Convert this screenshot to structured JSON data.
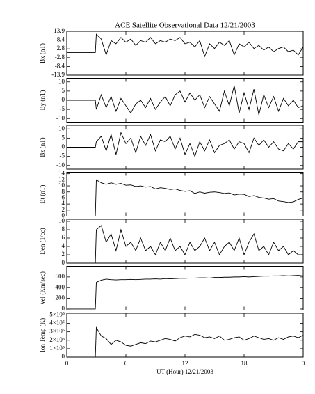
{
  "chart_data": [
    {
      "type": "line",
      "title": "ACE Satellite Observational Data   12/21/2003",
      "ylabel": "Bx (nT)",
      "x": [
        0,
        1,
        2,
        2.9,
        3,
        3.5,
        4,
        4.5,
        5,
        5.5,
        6,
        6.5,
        7,
        7.5,
        8,
        8.5,
        9,
        9.5,
        10,
        10.5,
        11,
        11.5,
        12,
        12.5,
        13,
        13.5,
        14,
        14.5,
        15,
        15.5,
        16,
        16.5,
        17,
        17.5,
        18,
        18.5,
        19,
        19.5,
        20,
        20.5,
        21,
        21.5,
        22,
        22.5,
        23,
        23.5,
        24
      ],
      "values": [
        0.5,
        0.5,
        0.5,
        0.5,
        12,
        9,
        -1,
        8,
        6,
        10,
        7,
        9,
        5,
        8,
        7,
        10,
        6,
        8,
        7,
        9,
        8,
        10,
        6,
        7,
        4,
        8,
        -2,
        6,
        3,
        7,
        5,
        8,
        -1,
        6,
        4,
        7,
        3,
        5,
        2,
        4,
        1,
        3,
        4,
        1,
        2,
        -1,
        4
      ],
      "color": "#000000",
      "xlim": [
        0,
        24
      ],
      "xticks": [
        0,
        6,
        12,
        18,
        {
          "value": 24,
          "label": "0"
        }
      ],
      "ylim": [
        -13.9,
        13.9
      ],
      "yticks": [
        13.9,
        8.4,
        2.8,
        -2.8,
        -8.4,
        -13.9
      ]
    },
    {
      "type": "line",
      "ylabel": "By (nT)",
      "x": [
        0,
        1,
        2,
        2.9,
        3,
        3.5,
        4,
        4.5,
        5,
        5.5,
        6,
        6.5,
        7,
        7.5,
        8,
        8.5,
        9,
        9.5,
        10,
        10.5,
        11,
        11.5,
        12,
        12.5,
        13,
        13.5,
        14,
        14.5,
        15,
        15.5,
        16,
        16.5,
        17,
        17.5,
        18,
        18.5,
        19,
        19.5,
        20,
        20.5,
        21,
        21.5,
        22,
        22.5,
        23,
        23.5,
        24
      ],
      "values": [
        0,
        0,
        0,
        0,
        -5,
        3,
        -4,
        2,
        -6,
        1,
        -3,
        -7,
        -2,
        0,
        -4,
        1,
        -5,
        -1,
        2,
        -3,
        3,
        5,
        -1,
        4,
        0,
        3,
        -4,
        2,
        -2,
        -6,
        5,
        -3,
        8,
        -7,
        4,
        -5,
        6,
        -8,
        3,
        -4,
        2,
        -6,
        1,
        -3,
        0,
        -4,
        -3
      ],
      "color": "#000000",
      "xlim": [
        0,
        24
      ],
      "xticks": [
        0,
        6,
        12,
        18,
        {
          "value": 24,
          "label": "0"
        }
      ],
      "ylim": [
        -12,
        12
      ],
      "yticks": [
        10,
        5,
        0,
        -5,
        -10
      ]
    },
    {
      "type": "line",
      "ylabel": "Bz (nT)",
      "x": [
        0,
        1,
        2,
        2.9,
        3,
        3.5,
        4,
        4.5,
        5,
        5.5,
        6,
        6.5,
        7,
        7.5,
        8,
        8.5,
        9,
        9.5,
        10,
        10.5,
        11,
        11.5,
        12,
        12.5,
        13,
        13.5,
        14,
        14.5,
        15,
        15.5,
        16,
        16.5,
        17,
        17.5,
        18,
        18.5,
        19,
        19.5,
        20,
        20.5,
        21,
        21.5,
        22,
        22.5,
        23,
        23.5,
        24
      ],
      "values": [
        0,
        0,
        0,
        0,
        3,
        6,
        -2,
        7,
        -4,
        8,
        2,
        5,
        -3,
        6,
        1,
        7,
        -2,
        4,
        3,
        6,
        -1,
        5,
        -4,
        2,
        -5,
        3,
        -2,
        4,
        -3,
        1,
        2,
        4,
        -1,
        3,
        2,
        -3,
        5,
        1,
        4,
        0,
        3,
        -1,
        -2,
        2,
        -1,
        3,
        3
      ],
      "color": "#000000",
      "xlim": [
        0,
        24
      ],
      "xticks": [
        0,
        6,
        12,
        18,
        {
          "value": 24,
          "label": "0"
        }
      ],
      "ylim": [
        -12,
        12
      ],
      "yticks": [
        10,
        5,
        0,
        -5,
        -10
      ]
    },
    {
      "type": "line",
      "ylabel": "Bt (nT)",
      "x": [
        0,
        1,
        2,
        2.9,
        3,
        3.5,
        4,
        4.5,
        5,
        5.5,
        6,
        6.5,
        7,
        7.5,
        8,
        8.5,
        9,
        9.5,
        10,
        10.5,
        11,
        11.5,
        12,
        12.5,
        13,
        13.5,
        14,
        14.5,
        15,
        15.5,
        16,
        16.5,
        17,
        17.5,
        18,
        18.5,
        19,
        19.5,
        20,
        20.5,
        21,
        21.5,
        22,
        22.5,
        23,
        23.5,
        24
      ],
      "values": [
        0,
        0,
        0,
        0,
        12,
        11,
        10.5,
        11,
        10.5,
        10.8,
        10.2,
        10.3,
        9.8,
        10,
        9.6,
        9.8,
        9,
        9.4,
        9.2,
        8.8,
        9,
        8.5,
        8.2,
        8.4,
        7.5,
        8,
        7.6,
        7.9,
        8,
        7.8,
        7.5,
        7.7,
        7,
        7.3,
        7.2,
        6.5,
        6.8,
        6.2,
        6,
        5.6,
        5.8,
        5,
        4.8,
        4.5,
        4.7,
        5.5,
        6
      ],
      "color": "#000000",
      "xlim": [
        0,
        24
      ],
      "xticks": [
        0,
        6,
        12,
        18,
        {
          "value": 24,
          "label": "0"
        }
      ],
      "ylim": [
        0,
        14.5
      ],
      "yticks": [
        0,
        2,
        4,
        6,
        8,
        10,
        12,
        14
      ]
    },
    {
      "type": "line",
      "ylabel": "Den (1/cc)",
      "x": [
        0,
        1,
        2,
        2.9,
        3,
        3.5,
        4,
        4.5,
        5,
        5.5,
        6,
        6.5,
        7,
        7.5,
        8,
        8.5,
        9,
        9.5,
        10,
        10.5,
        11,
        11.5,
        12,
        12.5,
        13,
        13.5,
        14,
        14.5,
        15,
        15.5,
        16,
        16.5,
        17,
        17.5,
        18,
        18.5,
        19,
        19.5,
        20,
        20.5,
        21,
        21.5,
        22,
        22.5,
        23,
        23.5,
        24
      ],
      "values": [
        0,
        0,
        0,
        0,
        8,
        9,
        5,
        7,
        3,
        8,
        4,
        5,
        3,
        6,
        3,
        4,
        2,
        5,
        3,
        6,
        3,
        4,
        2,
        5,
        3,
        4,
        6,
        3,
        5,
        2,
        4,
        5,
        3,
        6,
        2,
        5,
        7,
        3,
        4,
        2,
        5,
        3,
        4,
        2,
        3,
        2,
        2
      ],
      "color": "#000000",
      "xlim": [
        0,
        24
      ],
      "xticks": [
        0,
        6,
        12,
        18,
        {
          "value": 24,
          "label": "0"
        }
      ],
      "ylim": [
        0,
        10.5
      ],
      "yticks": [
        0,
        2,
        4,
        6,
        8,
        10
      ]
    },
    {
      "type": "line",
      "ylabel": "Vel (Km/sec)",
      "x": [
        0,
        1,
        2,
        2.9,
        3,
        3.5,
        4,
        4.5,
        5,
        5.5,
        6,
        6.5,
        7,
        7.5,
        8,
        8.5,
        9,
        9.5,
        10,
        10.5,
        11,
        11.5,
        12,
        12.5,
        13,
        13.5,
        14,
        14.5,
        15,
        15.5,
        16,
        16.5,
        17,
        17.5,
        18,
        18.5,
        19,
        19.5,
        20,
        20.5,
        21,
        21.5,
        22,
        22.5,
        23,
        23.5,
        24
      ],
      "values": [
        0,
        0,
        0,
        0,
        500,
        540,
        560,
        550,
        545,
        550,
        550,
        555,
        550,
        555,
        560,
        560,
        565,
        560,
        570,
        565,
        570,
        575,
        575,
        580,
        580,
        585,
        585,
        580,
        590,
        590,
        595,
        595,
        600,
        600,
        605,
        600,
        605,
        610,
        615,
        615,
        620,
        620,
        625,
        620,
        625,
        630,
        620
      ],
      "color": "#000000",
      "xlim": [
        0,
        24
      ],
      "xticks": [
        0,
        6,
        12,
        18,
        {
          "value": 24,
          "label": "0"
        }
      ],
      "ylim": [
        -20,
        800
      ],
      "yticks": [
        0,
        200,
        400,
        600
      ]
    },
    {
      "type": "line",
      "ylabel": "Ion Temp (K)",
      "xlabel": "UT (Hour)   12/21/2003",
      "x": [
        0,
        1,
        2,
        2.9,
        3,
        3.5,
        4,
        4.5,
        5,
        5.5,
        6,
        6.5,
        7,
        7.5,
        8,
        8.5,
        9,
        9.5,
        10,
        10.5,
        11,
        11.5,
        12,
        12.5,
        13,
        13.5,
        14,
        14.5,
        15,
        15.5,
        16,
        16.5,
        17,
        17.5,
        18,
        18.5,
        19,
        19.5,
        20,
        20.5,
        21,
        21.5,
        22,
        22.5,
        23,
        23.5,
        24
      ],
      "values": [
        0,
        0,
        0,
        0,
        350000,
        250000,
        220000,
        150000,
        200000,
        180000,
        140000,
        130000,
        150000,
        170000,
        160000,
        190000,
        180000,
        200000,
        220000,
        210000,
        190000,
        230000,
        250000,
        240000,
        270000,
        260000,
        230000,
        240000,
        220000,
        250000,
        200000,
        210000,
        230000,
        240000,
        200000,
        220000,
        250000,
        230000,
        210000,
        220000,
        200000,
        230000,
        210000,
        240000,
        250000,
        230000,
        260000
      ],
      "color": "#000000",
      "xlim": [
        0,
        24
      ],
      "xticks": [
        0,
        6,
        12,
        18,
        {
          "value": 24,
          "label": "0"
        }
      ],
      "ylim": [
        0,
        520000
      ],
      "yticks": [
        0,
        {
          "value": 100000,
          "label": "1×10⁵"
        },
        {
          "value": 200000,
          "label": "2×10⁵"
        },
        {
          "value": 300000,
          "label": "3×10⁵"
        },
        {
          "value": 400000,
          "label": "4×10⁵"
        },
        {
          "value": 500000,
          "label": "5×10⁵"
        }
      ]
    }
  ]
}
